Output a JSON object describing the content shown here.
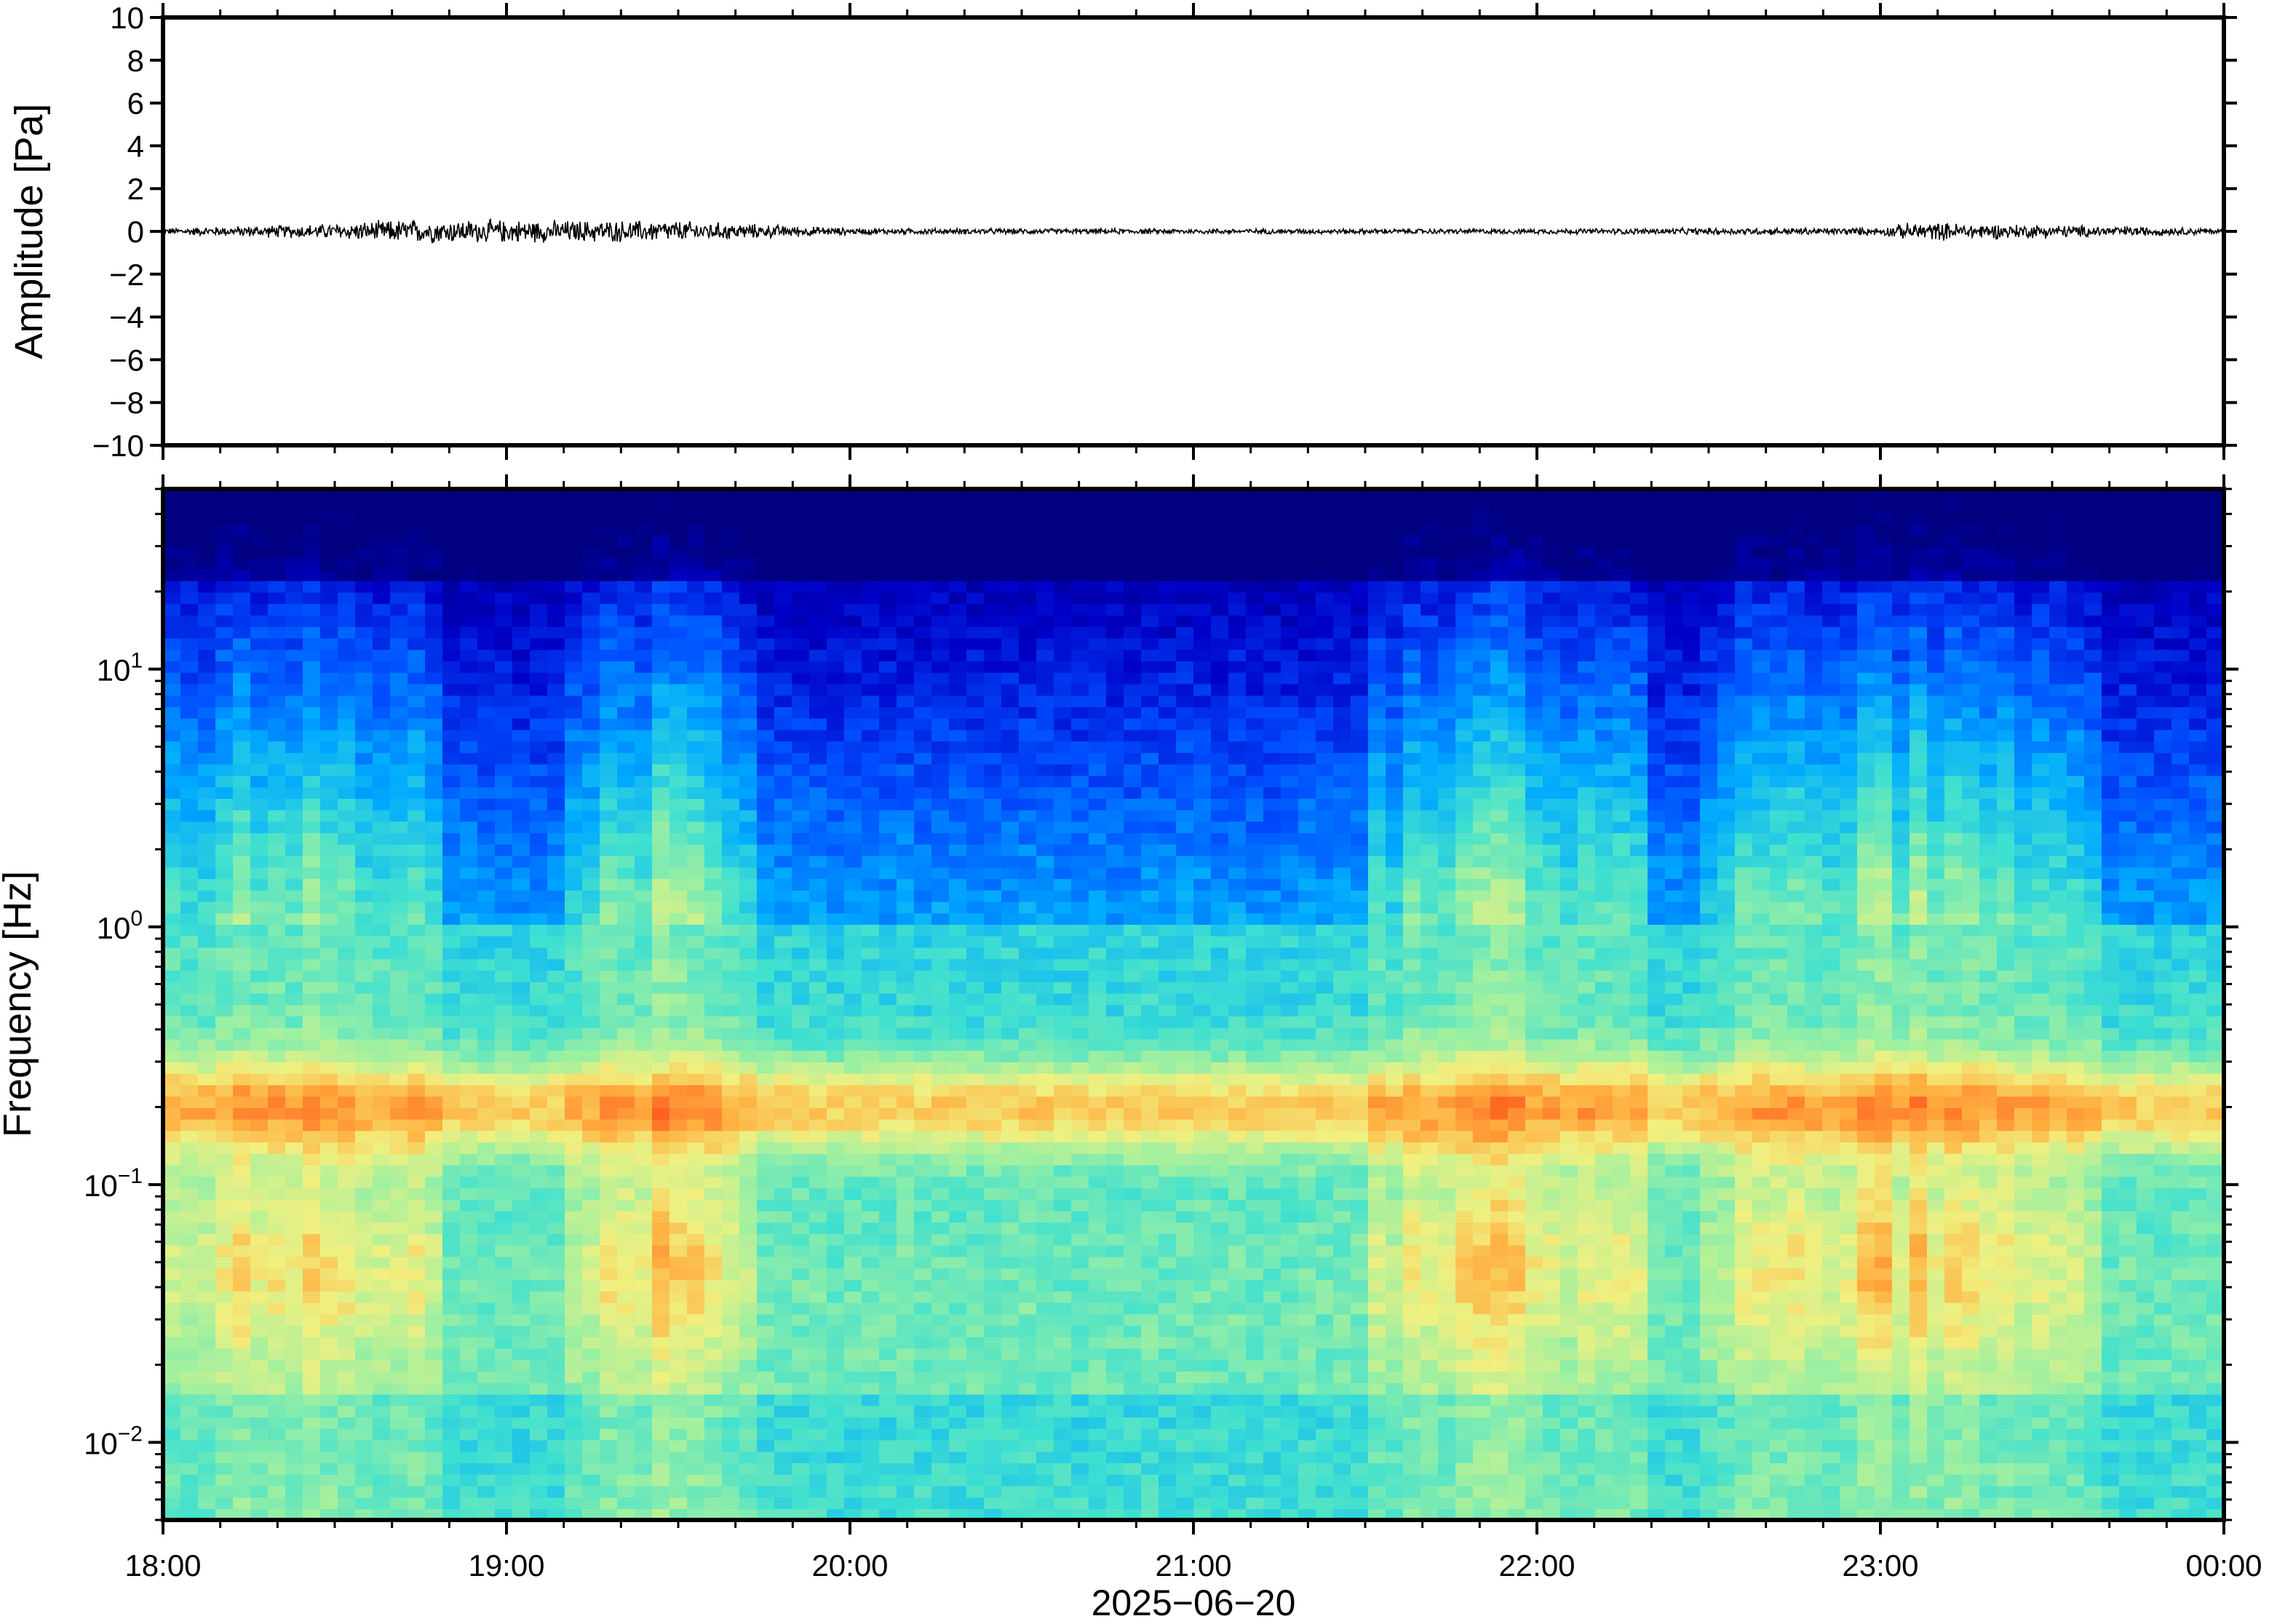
{
  "chart_data": [
    {
      "type": "line",
      "title": "",
      "xlabel": "",
      "ylabel": "Amplitude [Pa]",
      "ylim": [
        -10,
        10
      ],
      "yticks": [
        "10",
        "8",
        "6",
        "4",
        "2",
        "0",
        "−2",
        "−4",
        "−6",
        "−8",
        "−10"
      ],
      "ytick_values": [
        10,
        8,
        6,
        4,
        2,
        0,
        -2,
        -4,
        -6,
        -8,
        -10
      ],
      "grid": false,
      "series": [
        {
          "values_description": "",
          "x_hours": [
            18,
            18.5,
            18.7,
            19.5,
            20,
            21,
            22,
            23,
            23.1,
            24
          ],
          "y_envelope": [
            0.12,
            0.3,
            0.45,
            0.4,
            0.12,
            0.1,
            0.1,
            0.15,
            0.35,
            0.12
          ]
        }
      ],
      "trace_color": "#000000"
    },
    {
      "type": "heatmap",
      "title": "",
      "xlabel": "",
      "ylabel": "Frequency [Hz]",
      "yscale": "log",
      "ylim": [
        0.005,
        50
      ],
      "yticks": [
        {
          "base": "10",
          "exp": "1",
          "value": 10
        },
        {
          "base": "10",
          "exp": "0",
          "value": 1
        },
        {
          "base": "10",
          "exp": "−1",
          "value": 0.1
        },
        {
          "base": "10",
          "exp": "−2",
          "value": 0.01
        }
      ],
      "colormap": [
        "#000080",
        "#0000c8",
        "#0050ff",
        "#00aaff",
        "#40e0d0",
        "#a0f0a0",
        "#f0f080",
        "#ffb040",
        "#ff6020"
      ],
      "microbarom_peak_hz": 0.2,
      "active_periods": [
        {
          "start": "18:00",
          "end": "18:50"
        },
        {
          "start": "19:10",
          "end": "19:45"
        },
        {
          "start": "21:30",
          "end": "22:20"
        },
        {
          "start": "22:30",
          "end": "23:40"
        }
      ]
    }
  ],
  "xaxis": {
    "ticks": [
      "18:00",
      "19:00",
      "20:00",
      "21:00",
      "22:00",
      "23:00",
      "00:00"
    ],
    "date": "2025−06−20",
    "range_hours": [
      18,
      24
    ]
  }
}
